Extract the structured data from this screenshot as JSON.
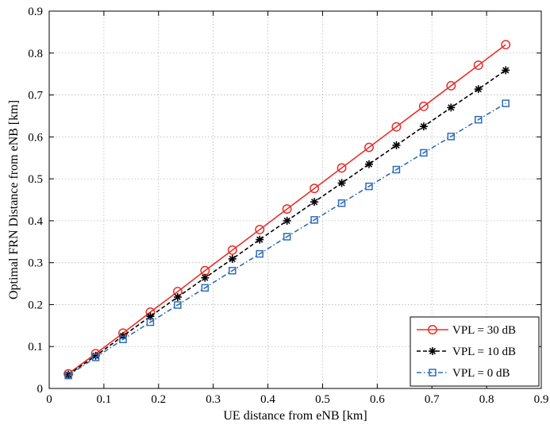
{
  "chart_data": {
    "type": "line",
    "title": "",
    "xlabel": "UE distance from eNB [km]",
    "ylabel": "Optimal FRN Distance from eNB [km]",
    "xlim": [
      0,
      0.9
    ],
    "ylim": [
      0,
      0.9
    ],
    "xticks": [
      0,
      0.1,
      0.2,
      0.3,
      0.4,
      0.5,
      0.6,
      0.7,
      0.8,
      0.9
    ],
    "yticks": [
      0,
      0.1,
      0.2,
      0.3,
      0.4,
      0.5,
      0.6,
      0.7,
      0.8,
      0.9
    ],
    "xtick_labels": [
      "0",
      "0.1",
      "0.2",
      "0.3",
      "0.4",
      "0.5",
      "0.6",
      "0.7",
      "0.8",
      "0.9"
    ],
    "ytick_labels": [
      "0",
      "0.1",
      "0.2",
      "0.3",
      "0.4",
      "0.5",
      "0.6",
      "0.7",
      "0.8",
      "0.9"
    ],
    "grid": true,
    "legend_position": "bottom-right",
    "x": [
      0.035,
      0.085,
      0.135,
      0.185,
      0.235,
      0.285,
      0.335,
      0.385,
      0.435,
      0.485,
      0.535,
      0.585,
      0.635,
      0.685,
      0.735,
      0.785,
      0.835
    ],
    "series": [
      {
        "name": "VPL = 30 dB",
        "color": "#e8302a",
        "marker": "circle",
        "line": "solid",
        "values": [
          0.035,
          0.083,
          0.132,
          0.182,
          0.231,
          0.281,
          0.33,
          0.379,
          0.428,
          0.477,
          0.526,
          0.575,
          0.624,
          0.673,
          0.722,
          0.771,
          0.82
        ]
      },
      {
        "name": "VPL = 10 dB",
        "color": "#000000",
        "marker": "asterisk",
        "line": "dashed",
        "values": [
          0.033,
          0.078,
          0.125,
          0.172,
          0.218,
          0.264,
          0.309,
          0.355,
          0.4,
          0.445,
          0.49,
          0.535,
          0.58,
          0.625,
          0.67,
          0.714,
          0.759
        ]
      },
      {
        "name": "VPL = 0 dB",
        "color": "#2f6db5",
        "marker": "square",
        "line": "dashdot",
        "values": [
          0.031,
          0.074,
          0.117,
          0.158,
          0.199,
          0.24,
          0.281,
          0.321,
          0.362,
          0.402,
          0.442,
          0.482,
          0.522,
          0.562,
          0.601,
          0.641,
          0.68
        ]
      }
    ]
  }
}
